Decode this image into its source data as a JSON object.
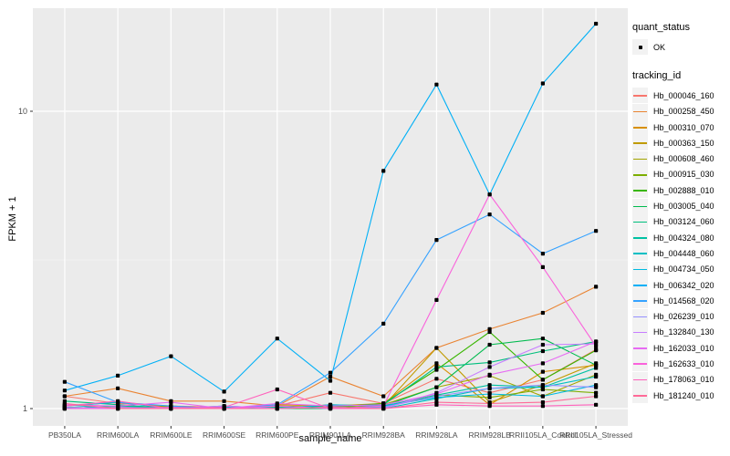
{
  "chart_data": {
    "type": "line",
    "title": "",
    "xlabel": "sample_name",
    "ylabel": "FPKM + 1",
    "y_scale": "log10",
    "ylim": [
      0.95,
      21.5
    ],
    "grid": "on",
    "legend_position": "right",
    "point_shape": "filled-square",
    "point_color": "#000000",
    "x_categories": [
      "PB350LA",
      "RRIM600LA",
      "RRIM600LE",
      "RRIM600SE",
      "RRIM600PE",
      "RRIM901LA",
      "RRIM928BA",
      "RRIM928LA",
      "RRIM928LB",
      "RRII105LA_Control",
      "RRII105LA_Stressed"
    ],
    "yticks": [
      {
        "label": "1",
        "value": 1
      },
      {
        "label": "10",
        "value": 10
      }
    ],
    "minor_grid_values": [
      3.162
    ],
    "series": [
      {
        "name": "Hb_000046_160",
        "color": "#F8766D",
        "values": [
          1.1,
          1.04,
          1.02,
          1.01,
          1.02,
          1.13,
          1.04,
          1.26,
          1.13,
          1.25,
          1.58
        ]
      },
      {
        "name": "Hb_000258_450",
        "color": "#EA8331",
        "values": [
          1.1,
          1.17,
          1.06,
          1.06,
          1.02,
          1.28,
          1.1,
          1.6,
          1.85,
          2.1,
          2.57
        ]
      },
      {
        "name": "Hb_000310_070",
        "color": "#D89000",
        "values": [
          1.02,
          1.05,
          1.01,
          1.0,
          1.03,
          1.02,
          1.04,
          1.42,
          1.03,
          1.33,
          1.4
        ]
      },
      {
        "name": "Hb_000363_150",
        "color": "#C09B00",
        "values": [
          1.0,
          1.02,
          1.0,
          1.01,
          1.0,
          1.03,
          1.02,
          1.6,
          1.05,
          1.2,
          1.42
        ]
      },
      {
        "name": "Hb_000608_460",
        "color": "#A3A500",
        "values": [
          1.01,
          1.0,
          1.02,
          1.0,
          1.01,
          1.0,
          1.03,
          1.18,
          1.29,
          1.1,
          1.3
        ]
      },
      {
        "name": "Hb_000915_030",
        "color": "#7CAE00",
        "values": [
          1.0,
          1.01,
          1.0,
          1.0,
          1.0,
          1.02,
          1.01,
          1.11,
          1.09,
          1.16,
          1.13
        ]
      },
      {
        "name": "Hb_002888_010",
        "color": "#39B600",
        "values": [
          1.0,
          1.02,
          1.01,
          1.0,
          1.02,
          1.01,
          1.04,
          1.35,
          1.81,
          1.25,
          1.57
        ]
      },
      {
        "name": "Hb_003005_040",
        "color": "#00BB4E",
        "values": [
          1.01,
          1.0,
          1.0,
          1.02,
          1.0,
          1.0,
          1.02,
          1.18,
          1.64,
          1.72,
          1.4
        ]
      },
      {
        "name": "Hb_003124_060",
        "color": "#00BF7D",
        "values": [
          1.06,
          1.03,
          1.0,
          1.01,
          1.0,
          1.02,
          1.03,
          1.38,
          1.43,
          1.56,
          1.68
        ]
      },
      {
        "name": "Hb_004324_080",
        "color": "#00C1A3",
        "values": [
          1.0,
          1.02,
          1.0,
          1.0,
          1.01,
          1.0,
          1.02,
          1.11,
          1.2,
          1.18,
          1.37
        ]
      },
      {
        "name": "Hb_004448_060",
        "color": "#00BFC4",
        "values": [
          1.03,
          1.0,
          1.01,
          1.0,
          1.0,
          1.01,
          1.0,
          1.08,
          1.17,
          1.18,
          1.28
        ]
      },
      {
        "name": "Hb_004734_050",
        "color": "#00BAE0",
        "values": [
          1.02,
          1.05,
          1.0,
          1.01,
          1.0,
          1.03,
          1.02,
          1.09,
          1.12,
          1.1,
          1.2
        ]
      },
      {
        "name": "Hb_006342_020",
        "color": "#00B0F6",
        "values": [
          1.15,
          1.29,
          1.5,
          1.14,
          1.72,
          1.24,
          6.3,
          12.3,
          5.25,
          12.4,
          19.7
        ]
      },
      {
        "name": "Hb_014568_020",
        "color": "#35A2FF",
        "values": [
          1.23,
          1.05,
          1.02,
          1.0,
          1.03,
          1.32,
          1.93,
          3.69,
          4.5,
          3.32,
          3.96
        ]
      },
      {
        "name": "Hb_026239_010",
        "color": "#9590FF",
        "values": [
          1.01,
          1.0,
          1.0,
          1.0,
          1.02,
          1.0,
          1.01,
          1.1,
          1.17,
          1.2,
          1.18
        ]
      },
      {
        "name": "Hb_132840_130",
        "color": "#C77CFF",
        "values": [
          1.0,
          1.01,
          1.0,
          1.02,
          1.0,
          1.01,
          1.0,
          1.13,
          1.38,
          1.64,
          1.65
        ]
      },
      {
        "name": "Hb_162033_010",
        "color": "#E76BF3",
        "values": [
          1.03,
          1.02,
          1.05,
          1.0,
          1.04,
          1.02,
          1.03,
          1.12,
          1.3,
          1.42,
          1.68
        ]
      },
      {
        "name": "Hb_162633_010",
        "color": "#FA62DB",
        "values": [
          1.0,
          1.0,
          1.01,
          1.0,
          1.02,
          1.0,
          1.02,
          2.32,
          5.25,
          2.99,
          1.62
        ]
      },
      {
        "name": "Hb_178063_010",
        "color": "#FF62BC",
        "values": [
          1.02,
          1.06,
          1.0,
          1.01,
          1.16,
          1.0,
          1.0,
          1.03,
          1.02,
          1.02,
          1.03
        ]
      },
      {
        "name": "Hb_181240_010",
        "color": "#FF6A98",
        "values": [
          1.04,
          1.0,
          1.0,
          1.0,
          1.0,
          1.01,
          1.0,
          1.05,
          1.04,
          1.05,
          1.1
        ]
      }
    ]
  },
  "legend": {
    "quant_status": {
      "title": "quant_status",
      "items": [
        {
          "label": "OK",
          "symbol": "point"
        }
      ]
    },
    "tracking_id": {
      "title": "tracking_id"
    }
  },
  "colors": {
    "panel_bg": "#EBEBEB",
    "grid_major": "#FFFFFF",
    "grid_minor": "#F5F5F5",
    "axis_text": "#4D4D4D",
    "tick_mark": "#333333",
    "legend_key_bg": "#F2F2F2",
    "background": "#FFFFFF"
  }
}
